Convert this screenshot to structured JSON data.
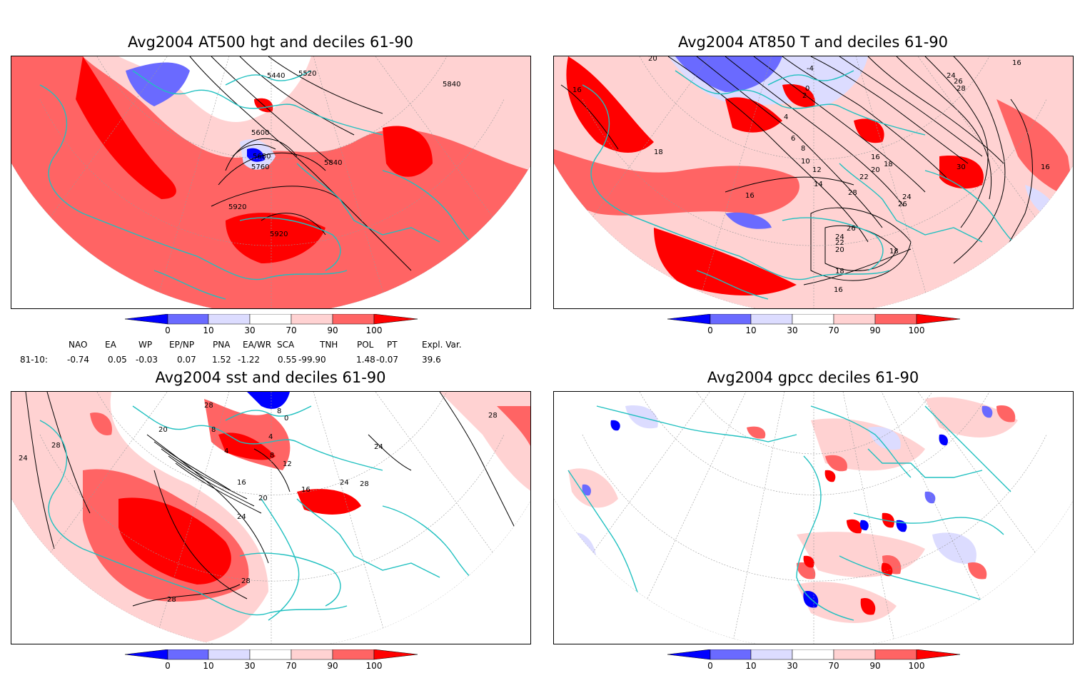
{
  "panels": {
    "p1": {
      "title": "Avg2004 AT500 hgt and deciles 61-90",
      "contour_labels": [
        "5440",
        "5520",
        "5840",
        "5600",
        "5680",
        "5760",
        "5840",
        "5920",
        "5920"
      ]
    },
    "p2": {
      "title": "Avg2004 AT850 T and deciles 61-90",
      "contour_labels": [
        "20",
        "18",
        "16",
        "-4",
        "0",
        "2",
        "4",
        "6",
        "8",
        "10",
        "12",
        "14",
        "16",
        "18",
        "20",
        "22",
        "24",
        "26",
        "28",
        "30",
        "24",
        "26",
        "28",
        "16",
        "16",
        "18",
        "18",
        "20",
        "22",
        "24",
        "26",
        "16",
        "16"
      ]
    },
    "p3": {
      "title": "Avg2004 sst and deciles 61-90",
      "contour_labels": [
        "28",
        "24",
        "28",
        "20",
        "16",
        "20",
        "24",
        "28",
        "28",
        "8",
        "4",
        "8",
        "0",
        "4",
        "8",
        "12",
        "16",
        "24",
        "28",
        "24",
        "28"
      ]
    },
    "p4": {
      "title": "Avg2004 gpcc deciles 61-90"
    }
  },
  "colorbar": {
    "ticks": [
      "0",
      "10",
      "30",
      "70",
      "90",
      "100"
    ],
    "colors": [
      "#0000ff",
      "#6a6aff",
      "#dcdcff",
      "#ffffff",
      "#ffd2d2",
      "#ff6464",
      "#ff0000"
    ]
  },
  "indices": {
    "headers": [
      "NAO",
      "EA",
      "WP",
      "EP/NP",
      "PNA",
      "EA/WR",
      "SCA",
      "TNH",
      "POL",
      "PT",
      "Expl. Var."
    ],
    "row_label": "81-10:",
    "values": [
      "-0.74",
      "0.05",
      "-0.03",
      "0.07",
      "1.52",
      "-1.22",
      "0.55",
      "-99.90",
      "1.48",
      "-0.07",
      "39.6"
    ]
  },
  "map_colors": {
    "land_outline": "#20c0c0",
    "contour": "#000000",
    "graticule": "#999999"
  }
}
